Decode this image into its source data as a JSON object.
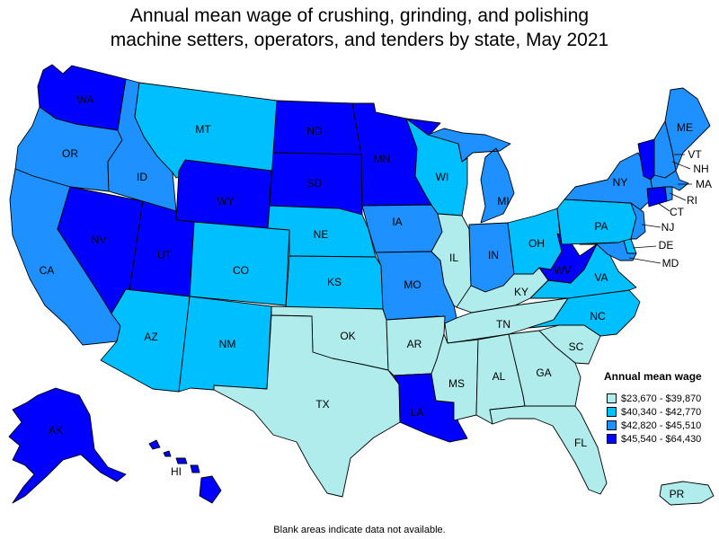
{
  "title": {
    "line1": "Annual mean wage of crushing, grinding, and polishing",
    "line2": "machine setters, operators, and tenders by state, May 2021"
  },
  "legend": {
    "title": "Annual mean wage",
    "bins": [
      {
        "label": "$23,670 - $39,870",
        "color": "#b0ecec"
      },
      {
        "label": "$40,340 - $42,770",
        "color": "#00bfff"
      },
      {
        "label": "$42,820 - $45,510",
        "color": "#1e90ff"
      },
      {
        "label": "$45,540 - $64,430",
        "color": "#0000ff"
      }
    ]
  },
  "footnote": "Blank areas indicate data not available.",
  "states": {
    "WA": 3,
    "OR": 2,
    "CA": 2,
    "NV": 3,
    "ID": 2,
    "MT": 1,
    "WY": 3,
    "UT": 3,
    "AZ": 1,
    "NM": 1,
    "CO": 1,
    "ND": 3,
    "SD": 3,
    "NE": 1,
    "KS": 1,
    "OK": 0,
    "TX": 0,
    "MN": 3,
    "IA": 2,
    "MO": 2,
    "AR": 0,
    "LA": 3,
    "WI": 1,
    "IL": 0,
    "MI": 2,
    "IN": 2,
    "OH": 1,
    "KY": 0,
    "TN": 0,
    "MS": 0,
    "AL": 0,
    "GA": 0,
    "FL": 0,
    "SC": 0,
    "NC": 1,
    "VA": 1,
    "WV": 3,
    "PA": 1,
    "NY": 2,
    "VT": 3,
    "NH": 2,
    "ME": 2,
    "MA": 2,
    "CT": 3,
    "RI": 2,
    "NJ": 2,
    "DE": 1,
    "MD": 2,
    "AK": 3,
    "HI": 3,
    "PR": 0
  }
}
